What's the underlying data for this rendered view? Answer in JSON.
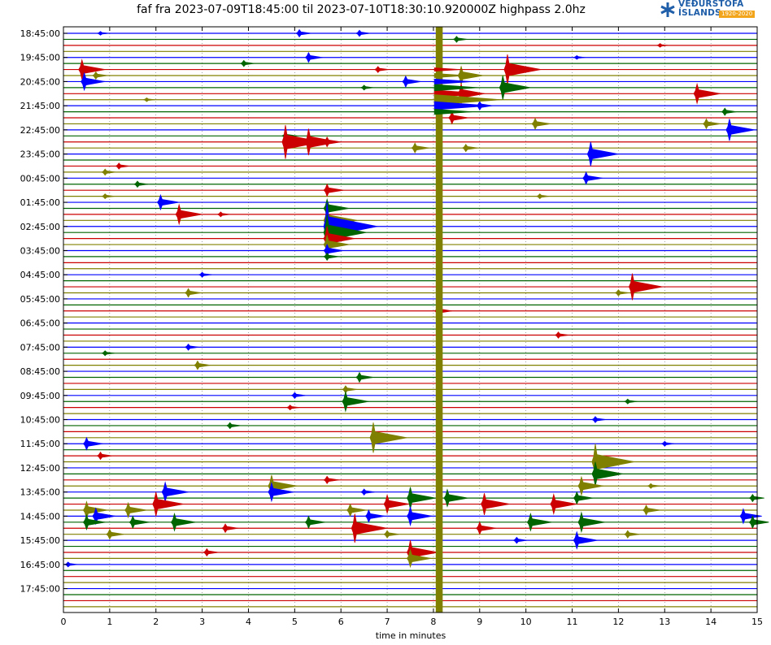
{
  "chart_data": {
    "type": "line",
    "title": "faf fra 2023-07-09T18:45:00 til 2023-07-10T18:30:10.920000Z highpass 2.0hz",
    "xlabel": "time in minutes",
    "ylabel": "",
    "xlim": [
      0,
      15
    ],
    "x_ticks": [
      0,
      1,
      2,
      3,
      4,
      5,
      6,
      7,
      8,
      9,
      10,
      11,
      12,
      13,
      14,
      15
    ],
    "x_grid": "dotted",
    "row_minutes": 15,
    "row_count": 96,
    "y_tick_labels": [
      "18:45:00",
      "19:45:00",
      "20:45:00",
      "21:45:00",
      "22:45:00",
      "23:45:00",
      "00:45:00",
      "01:45:00",
      "02:45:00",
      "03:45:00",
      "04:45:00",
      "05:45:00",
      "06:45:00",
      "07:45:00",
      "08:45:00",
      "09:45:00",
      "10:45:00",
      "11:45:00",
      "12:45:00",
      "13:45:00",
      "14:45:00",
      "15:45:00",
      "16:45:00",
      "17:45:00"
    ],
    "colors": [
      "#0000ff",
      "#006400",
      "#cc0000",
      "#808000"
    ],
    "big_event": {
      "x_min": 8.05,
      "x_max": 8.2,
      "from_row": 0,
      "to_row": 95,
      "color": "#808000"
    },
    "events": [
      {
        "row": 0,
        "x": 5.1,
        "amp": 0.6
      },
      {
        "row": 0,
        "x": 6.4,
        "amp": 0.5
      },
      {
        "row": 0,
        "x": 0.8,
        "amp": 0.3
      },
      {
        "row": 1,
        "x": 8.5,
        "amp": 0.5
      },
      {
        "row": 2,
        "x": 12.9,
        "amp": 0.3
      },
      {
        "row": 4,
        "x": 5.3,
        "amp": 0.8
      },
      {
        "row": 4,
        "x": 11.1,
        "amp": 0.3
      },
      {
        "row": 5,
        "x": 3.9,
        "amp": 0.5
      },
      {
        "row": 6,
        "x": 0.4,
        "amp": 1.6
      },
      {
        "row": 6,
        "x": 6.8,
        "amp": 0.5
      },
      {
        "row": 6,
        "x": 9.6,
        "amp": 2.5
      },
      {
        "row": 7,
        "x": 0.7,
        "amp": 0.6
      },
      {
        "row": 7,
        "x": 8.6,
        "amp": 1.5
      },
      {
        "row": 8,
        "x": 0.45,
        "amp": 1.4
      },
      {
        "row": 8,
        "x": 7.4,
        "amp": 0.9
      },
      {
        "row": 9,
        "x": 6.5,
        "amp": 0.4
      },
      {
        "row": 9,
        "x": 9.5,
        "amp": 2.0
      },
      {
        "row": 10,
        "x": 8.6,
        "amp": 1.6
      },
      {
        "row": 10,
        "x": 13.7,
        "amp": 1.6
      },
      {
        "row": 11,
        "x": 1.8,
        "amp": 0.3
      },
      {
        "row": 12,
        "x": 9.0,
        "amp": 0.7
      },
      {
        "row": 13,
        "x": 14.3,
        "amp": 0.6
      },
      {
        "row": 14,
        "x": 8.4,
        "amp": 1.0
      },
      {
        "row": 15,
        "x": 10.2,
        "amp": 0.9
      },
      {
        "row": 15,
        "x": 13.9,
        "amp": 0.8
      },
      {
        "row": 16,
        "x": 14.4,
        "amp": 1.8
      },
      {
        "row": 17,
        "x": 4.8,
        "amp": 0.6
      },
      {
        "row": 18,
        "x": 4.8,
        "amp": 2.8
      },
      {
        "row": 18,
        "x": 5.3,
        "amp": 2.2
      },
      {
        "row": 18,
        "x": 5.7,
        "amp": 0.8
      },
      {
        "row": 19,
        "x": 7.6,
        "amp": 0.8
      },
      {
        "row": 19,
        "x": 8.7,
        "amp": 0.6
      },
      {
        "row": 20,
        "x": 11.4,
        "amp": 2.0
      },
      {
        "row": 22,
        "x": 1.2,
        "amp": 0.5
      },
      {
        "row": 23,
        "x": 0.9,
        "amp": 0.5
      },
      {
        "row": 24,
        "x": 11.3,
        "amp": 1.0
      },
      {
        "row": 25,
        "x": 1.6,
        "amp": 0.5
      },
      {
        "row": 26,
        "x": 5.7,
        "amp": 1.0
      },
      {
        "row": 27,
        "x": 0.9,
        "amp": 0.4
      },
      {
        "row": 27,
        "x": 10.3,
        "amp": 0.4
      },
      {
        "row": 28,
        "x": 2.1,
        "amp": 1.2
      },
      {
        "row": 29,
        "x": 5.7,
        "amp": 1.5
      },
      {
        "row": 30,
        "x": 2.5,
        "amp": 1.6
      },
      {
        "row": 30,
        "x": 3.4,
        "amp": 0.4
      },
      {
        "row": 31,
        "x": 5.7,
        "amp": 2.2
      },
      {
        "row": 32,
        "x": 5.7,
        "amp": 4.0
      },
      {
        "row": 33,
        "x": 5.7,
        "amp": 3.0
      },
      {
        "row": 34,
        "x": 5.7,
        "amp": 2.0
      },
      {
        "row": 35,
        "x": 5.7,
        "amp": 1.5
      },
      {
        "row": 36,
        "x": 5.7,
        "amp": 1.0
      },
      {
        "row": 37,
        "x": 5.7,
        "amp": 0.6
      },
      {
        "row": 40,
        "x": 3.0,
        "amp": 0.4
      },
      {
        "row": 42,
        "x": 12.3,
        "amp": 2.2
      },
      {
        "row": 43,
        "x": 2.7,
        "amp": 0.7
      },
      {
        "row": 43,
        "x": 12.0,
        "amp": 0.5
      },
      {
        "row": 46,
        "x": 8.1,
        "amp": 0.8
      },
      {
        "row": 50,
        "x": 10.7,
        "amp": 0.5
      },
      {
        "row": 52,
        "x": 2.7,
        "amp": 0.5
      },
      {
        "row": 53,
        "x": 0.9,
        "amp": 0.4
      },
      {
        "row": 55,
        "x": 2.9,
        "amp": 0.7
      },
      {
        "row": 57,
        "x": 6.4,
        "amp": 0.8
      },
      {
        "row": 59,
        "x": 6.1,
        "amp": 0.6
      },
      {
        "row": 60,
        "x": 5.0,
        "amp": 0.5
      },
      {
        "row": 61,
        "x": 6.1,
        "amp": 1.6
      },
      {
        "row": 61,
        "x": 12.2,
        "amp": 0.4
      },
      {
        "row": 62,
        "x": 4.9,
        "amp": 0.4
      },
      {
        "row": 64,
        "x": 11.5,
        "amp": 0.5
      },
      {
        "row": 65,
        "x": 3.6,
        "amp": 0.5
      },
      {
        "row": 67,
        "x": 6.7,
        "amp": 2.5
      },
      {
        "row": 68,
        "x": 0.5,
        "amp": 1.0
      },
      {
        "row": 68,
        "x": 13.0,
        "amp": 0.4
      },
      {
        "row": 70,
        "x": 0.8,
        "amp": 0.6
      },
      {
        "row": 71,
        "x": 11.5,
        "amp": 3.0
      },
      {
        "row": 73,
        "x": 11.5,
        "amp": 2.0
      },
      {
        "row": 74,
        "x": 5.7,
        "amp": 0.6
      },
      {
        "row": 75,
        "x": 4.5,
        "amp": 1.8
      },
      {
        "row": 75,
        "x": 11.2,
        "amp": 1.5
      },
      {
        "row": 75,
        "x": 12.7,
        "amp": 0.4
      },
      {
        "row": 76,
        "x": 2.2,
        "amp": 1.6
      },
      {
        "row": 76,
        "x": 4.5,
        "amp": 1.5
      },
      {
        "row": 76,
        "x": 6.5,
        "amp": 0.5
      },
      {
        "row": 77,
        "x": 7.5,
        "amp": 1.8
      },
      {
        "row": 77,
        "x": 8.3,
        "amp": 1.4
      },
      {
        "row": 77,
        "x": 11.1,
        "amp": 1.0
      },
      {
        "row": 77,
        "x": 14.9,
        "amp": 0.6
      },
      {
        "row": 78,
        "x": 2.0,
        "amp": 2.0
      },
      {
        "row": 78,
        "x": 7.0,
        "amp": 1.5
      },
      {
        "row": 78,
        "x": 9.1,
        "amp": 1.8
      },
      {
        "row": 78,
        "x": 10.6,
        "amp": 1.6
      },
      {
        "row": 79,
        "x": 0.5,
        "amp": 1.4
      },
      {
        "row": 79,
        "x": 1.4,
        "amp": 1.2
      },
      {
        "row": 79,
        "x": 6.2,
        "amp": 1.0
      },
      {
        "row": 79,
        "x": 12.6,
        "amp": 0.8
      },
      {
        "row": 80,
        "x": 0.7,
        "amp": 1.3
      },
      {
        "row": 80,
        "x": 6.6,
        "amp": 1.0
      },
      {
        "row": 80,
        "x": 7.5,
        "amp": 1.5
      },
      {
        "row": 80,
        "x": 14.7,
        "amp": 1.2
      },
      {
        "row": 81,
        "x": 0.5,
        "amp": 1.2
      },
      {
        "row": 81,
        "x": 1.5,
        "amp": 1.0
      },
      {
        "row": 81,
        "x": 2.4,
        "amp": 1.4
      },
      {
        "row": 81,
        "x": 5.3,
        "amp": 1.0
      },
      {
        "row": 81,
        "x": 10.1,
        "amp": 1.4
      },
      {
        "row": 81,
        "x": 11.2,
        "amp": 1.6
      },
      {
        "row": 81,
        "x": 14.9,
        "amp": 1.0
      },
      {
        "row": 82,
        "x": 3.5,
        "amp": 0.7
      },
      {
        "row": 82,
        "x": 6.3,
        "amp": 2.4
      },
      {
        "row": 82,
        "x": 9.0,
        "amp": 1.0
      },
      {
        "row": 83,
        "x": 1.0,
        "amp": 0.8
      },
      {
        "row": 83,
        "x": 12.2,
        "amp": 0.6
      },
      {
        "row": 83,
        "x": 7.0,
        "amp": 0.6
      },
      {
        "row": 84,
        "x": 11.1,
        "amp": 1.4
      },
      {
        "row": 84,
        "x": 9.8,
        "amp": 0.5
      },
      {
        "row": 86,
        "x": 3.1,
        "amp": 0.6
      },
      {
        "row": 86,
        "x": 7.5,
        "amp": 2.0
      },
      {
        "row": 87,
        "x": 7.5,
        "amp": 1.4
      },
      {
        "row": 88,
        "x": 0.1,
        "amp": 0.4
      }
    ]
  },
  "logo": {
    "line1": "VEÐURSTOFA",
    "line2": "ÍSLANDS",
    "badge": "1920-2020"
  }
}
